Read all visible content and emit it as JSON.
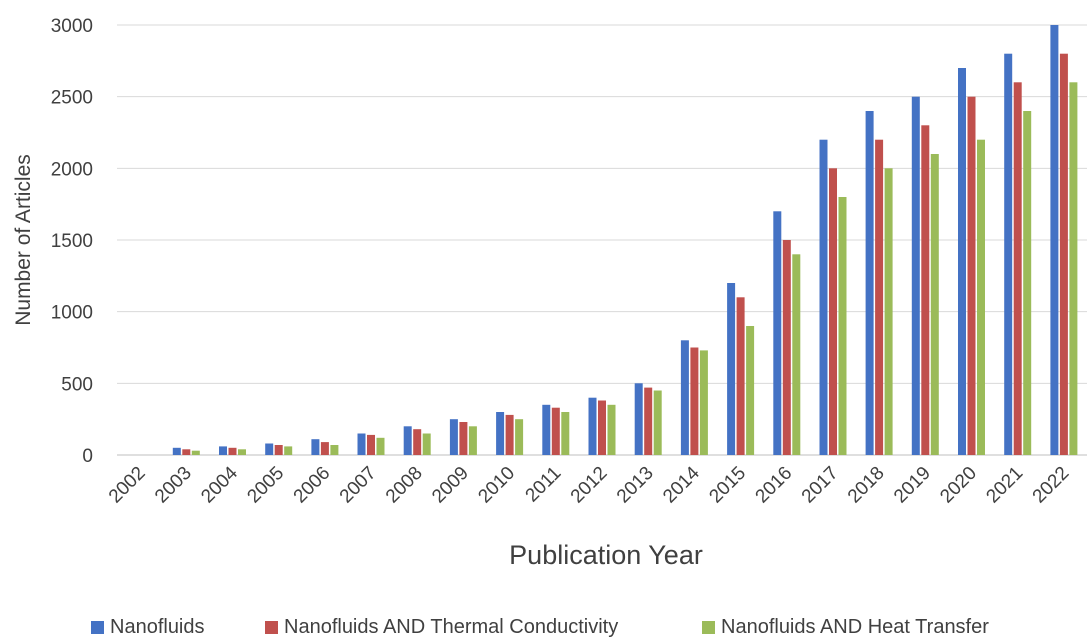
{
  "chart_data": {
    "type": "bar",
    "title": "",
    "xlabel": "Publication Year",
    "ylabel": "Number of Articles",
    "ylim": [
      0,
      3000
    ],
    "yticks": [
      0,
      500,
      1000,
      1500,
      2000,
      2500,
      3000
    ],
    "grid": true,
    "legend": "bottom",
    "categories": [
      "2002",
      "2003",
      "2004",
      "2005",
      "2006",
      "2007",
      "2008",
      "2009",
      "2010",
      "2011",
      "2012",
      "2013",
      "2014",
      "2015",
      "2016",
      "2017",
      "2018",
      "2019",
      "2020",
      "2021",
      "2022"
    ],
    "series": [
      {
        "name": "Nanofluids",
        "color": "#4472C4",
        "values": [
          0,
          50,
          60,
          80,
          110,
          150,
          200,
          250,
          300,
          350,
          400,
          500,
          800,
          1200,
          1700,
          2200,
          2400,
          2500,
          2700,
          2800,
          3000
        ]
      },
      {
        "name": "Nanofluids AND Thermal Conductivity",
        "color": "#C0504D",
        "values": [
          0,
          40,
          50,
          70,
          90,
          140,
          180,
          230,
          280,
          330,
          380,
          470,
          750,
          1100,
          1500,
          2000,
          2200,
          2300,
          2500,
          2600,
          2800
        ]
      },
      {
        "name": "Nanofluids AND Heat Transfer",
        "color": "#9BBB59",
        "values": [
          0,
          30,
          40,
          60,
          70,
          120,
          150,
          200,
          250,
          300,
          350,
          450,
          730,
          900,
          1400,
          1800,
          2000,
          2100,
          2200,
          2400,
          2600
        ]
      }
    ]
  }
}
